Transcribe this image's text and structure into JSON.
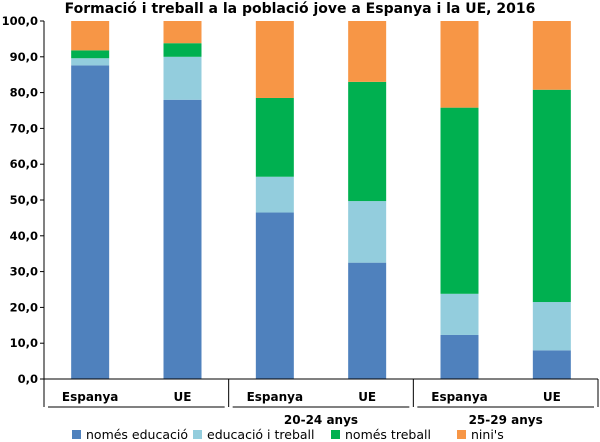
{
  "chart_data": {
    "type": "bar",
    "stacked": true,
    "title": "Formació i treball a la població jove a Espanya i la UE, 2016",
    "ylim": [
      0,
      100
    ],
    "yticks": [
      "0,0",
      "10,0",
      "20,0",
      "30,0",
      "40,0",
      "50,0",
      "60,0",
      "70,0",
      "80,0",
      "90,0",
      "100,0"
    ],
    "categories": [
      "Espanya",
      "UE",
      "Espanya",
      "UE",
      "Espanya",
      "UE"
    ],
    "groups": [
      {
        "label": "",
        "span": [
          0,
          1
        ]
      },
      {
        "label": "20-24 anys",
        "span": [
          2,
          3
        ]
      },
      {
        "label": "25-29 anys",
        "span": [
          4,
          5
        ]
      }
    ],
    "series": [
      {
        "name": "només educació",
        "color": "#4F81BD",
        "values": [
          87.6,
          78.0,
          46.5,
          32.5,
          12.3,
          8.0
        ]
      },
      {
        "name": "educació i treball",
        "color": "#93CDDD",
        "values": [
          2.0,
          12.0,
          10.0,
          17.2,
          11.5,
          13.5
        ]
      },
      {
        "name": "només treball",
        "color": "#00B050",
        "values": [
          2.2,
          3.8,
          22.0,
          33.3,
          52.0,
          59.3
        ]
      },
      {
        "name": "nini's",
        "color": "#F79646",
        "values": [
          8.2,
          6.2,
          21.5,
          17.0,
          24.2,
          19.2
        ]
      }
    ],
    "legend_position": "bottom"
  }
}
